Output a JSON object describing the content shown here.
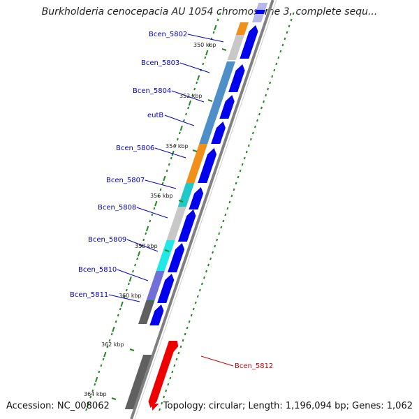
{
  "title": "Burkholderia cenocepacia AU 1054 chromosome 3, complete sequ...",
  "footer": {
    "accession": "Accession: NC_008062",
    "summary": "Topology: circular; Length: 1,196,094 bp; Genes: 1,062"
  },
  "kbp_labels": [
    "350 kbp",
    "352 kbp",
    "354 kbp",
    "356 kbp",
    "358 kbp",
    "360 kbp",
    "362 kbp",
    "364 kbp"
  ],
  "genes_forward": [
    {
      "name": "Bcen_5802",
      "cog_color": "#c8c8c8"
    },
    {
      "name": "Bcen_5803",
      "cog_color": "#4f8fc8"
    },
    {
      "name": "Bcen_5804",
      "cog_color": "#4f8fc8"
    },
    {
      "name": "eutB",
      "cog_color": "#4f8fc8"
    },
    {
      "name": "Bcen_5806",
      "cog_color": "#f0901a"
    },
    {
      "name": "Bcen_5807",
      "cog_color": "#20c8c8"
    },
    {
      "name": "Bcen_5808",
      "cog_color": "#c8c8c8"
    },
    {
      "name": "Bcen_5809",
      "cog_color": "#20e8e8"
    },
    {
      "name": "Bcen_5810",
      "cog_color": "#7070d8"
    },
    {
      "name": "Bcen_5811",
      "cog_color": "#606060"
    }
  ],
  "genes_reverse": [
    {
      "name": "Bcen_5812",
      "cog_color": "#606060"
    }
  ],
  "colors": {
    "forward_strand": "#0000ee",
    "reverse_strand": "#ee0000",
    "backbone": "#808080",
    "gc_ticks": "#228822"
  }
}
